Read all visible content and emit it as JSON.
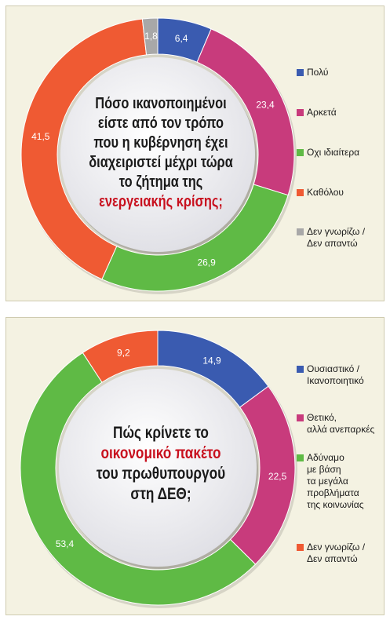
{
  "chart_data": [
    {
      "type": "pie",
      "question": {
        "before": "Πόσο ικανοποιημένοι είστε από τον τρόπο που η κυβέρνηση έχει διαχειριστεί μέχρι τώρα το ζήτημα της",
        "highlight": "ενεργειακής κρίσης;",
        "after": ""
      },
      "categories": [
        "Πολύ",
        "Αρκετά",
        "Οχι ιδιαίτερα",
        "Καθόλου",
        "Δεν γνωρίζω /\nΔεν απαντώ"
      ],
      "values": [
        6.4,
        23.4,
        26.9,
        41.5,
        1.8
      ],
      "labels": [
        "6,4",
        "23,4",
        "26,9",
        "41,5",
        "1,8"
      ],
      "colors": [
        "#3a5bb0",
        "#c83b7c",
        "#5fba45",
        "#ef5a33",
        "#a8a8a8"
      ]
    },
    {
      "type": "pie",
      "question": {
        "before": "Πώς κρίνετε το",
        "highlight": "οικονομικό πακέτο",
        "after": "του πρωθυπουργού στη ΔΕΘ;"
      },
      "categories": [
        "Ουσιαστικό /\nΙκανοποιητικό",
        "Θετικό,\nαλλά ανεπαρκές",
        "Αδύναμο\nμε βάση\nτα μεγάλα\nπροβλήματα\nτης κοινωνίας",
        "Δεν γνωρίζω /\nΔεν απαντώ"
      ],
      "values": [
        14.9,
        22.5,
        53.4,
        9.2
      ],
      "labels": [
        "14,9",
        "22,5",
        "53,4",
        "9,2"
      ],
      "colors": [
        "#3a5bb0",
        "#c83b7c",
        "#5fba45",
        "#ef5a33"
      ]
    }
  ]
}
